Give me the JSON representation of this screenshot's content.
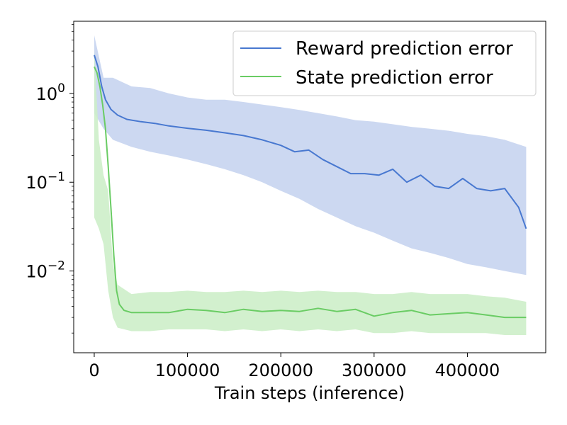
{
  "chart_data": {
    "type": "line",
    "title": "",
    "xlabel": "Train steps (inference)",
    "ylabel": "",
    "xlim": [
      -22000,
      484000
    ],
    "ylim": [
      0.0012,
      6.5
    ],
    "yscale": "log",
    "grid": false,
    "legend_position": "top-right",
    "x_ticks": [
      {
        "value": 0,
        "label": "0"
      },
      {
        "value": 100000,
        "label": "100000"
      },
      {
        "value": 200000,
        "label": "200000"
      },
      {
        "value": 300000,
        "label": "300000"
      },
      {
        "value": 400000,
        "label": "400000"
      }
    ],
    "y_ticks": [
      {
        "value": 1,
        "base": "10",
        "exp": "0"
      },
      {
        "value": 0.1,
        "base": "10",
        "exp": "−1"
      },
      {
        "value": 0.01,
        "base": "10",
        "exp": "−2"
      }
    ],
    "series": [
      {
        "name": "Reward prediction error",
        "color": "#4878d0",
        "band_color": "#c6d4f0",
        "smoothed": [
          [
            0,
            2.7
          ],
          [
            4000,
            2.0
          ],
          [
            8000,
            1.2
          ],
          [
            12000,
            0.85
          ],
          [
            18000,
            0.66
          ],
          [
            25000,
            0.57
          ],
          [
            35000,
            0.51
          ],
          [
            50000,
            0.48
          ],
          [
            65000,
            0.46
          ],
          [
            80000,
            0.43
          ],
          [
            100000,
            0.405
          ],
          [
            120000,
            0.385
          ],
          [
            140000,
            0.36
          ],
          [
            160000,
            0.335
          ],
          [
            180000,
            0.3
          ],
          [
            200000,
            0.26
          ],
          [
            215000,
            0.22
          ],
          [
            230000,
            0.23
          ],
          [
            245000,
            0.18
          ],
          [
            260000,
            0.15
          ],
          [
            275000,
            0.125
          ],
          [
            290000,
            0.125
          ],
          [
            305000,
            0.12
          ],
          [
            320000,
            0.14
          ],
          [
            335000,
            0.1
          ],
          [
            350000,
            0.12
          ],
          [
            365000,
            0.09
          ],
          [
            380000,
            0.085
          ],
          [
            395000,
            0.11
          ],
          [
            410000,
            0.085
          ],
          [
            425000,
            0.08
          ],
          [
            440000,
            0.085
          ],
          [
            455000,
            0.052
          ],
          [
            463000,
            0.03
          ]
        ],
        "raw_upper": [
          [
            0,
            4.5
          ],
          [
            10000,
            1.5
          ],
          [
            20000,
            1.5
          ],
          [
            40000,
            1.2
          ],
          [
            60000,
            1.15
          ],
          [
            80000,
            1.0
          ],
          [
            100000,
            0.9
          ],
          [
            120000,
            0.85
          ],
          [
            140000,
            0.85
          ],
          [
            160000,
            0.8
          ],
          [
            180000,
            0.75
          ],
          [
            200000,
            0.7
          ],
          [
            220000,
            0.65
          ],
          [
            240000,
            0.6
          ],
          [
            260000,
            0.55
          ],
          [
            280000,
            0.5
          ],
          [
            300000,
            0.48
          ],
          [
            320000,
            0.45
          ],
          [
            340000,
            0.42
          ],
          [
            360000,
            0.4
          ],
          [
            380000,
            0.38
          ],
          [
            400000,
            0.35
          ],
          [
            420000,
            0.33
          ],
          [
            440000,
            0.3
          ],
          [
            463000,
            0.25
          ]
        ],
        "raw_lower": [
          [
            0,
            0.6
          ],
          [
            10000,
            0.4
          ],
          [
            20000,
            0.3
          ],
          [
            40000,
            0.25
          ],
          [
            60000,
            0.22
          ],
          [
            80000,
            0.2
          ],
          [
            100000,
            0.18
          ],
          [
            120000,
            0.16
          ],
          [
            140000,
            0.14
          ],
          [
            160000,
            0.12
          ],
          [
            180000,
            0.1
          ],
          [
            200000,
            0.08
          ],
          [
            220000,
            0.065
          ],
          [
            240000,
            0.05
          ],
          [
            260000,
            0.04
          ],
          [
            280000,
            0.032
          ],
          [
            300000,
            0.027
          ],
          [
            320000,
            0.022
          ],
          [
            340000,
            0.018
          ],
          [
            360000,
            0.016
          ],
          [
            380000,
            0.014
          ],
          [
            400000,
            0.012
          ],
          [
            420000,
            0.011
          ],
          [
            440000,
            0.01
          ],
          [
            463000,
            0.009
          ]
        ]
      },
      {
        "name": "State prediction error",
        "color": "#6acc64",
        "band_color": "#cdeec9",
        "smoothed": [
          [
            0,
            2.0
          ],
          [
            3000,
            1.7
          ],
          [
            6000,
            1.2
          ],
          [
            9000,
            0.75
          ],
          [
            12000,
            0.4
          ],
          [
            15000,
            0.15
          ],
          [
            18000,
            0.05
          ],
          [
            21000,
            0.015
          ],
          [
            24000,
            0.006
          ],
          [
            27000,
            0.0042
          ],
          [
            32000,
            0.0036
          ],
          [
            40000,
            0.0034
          ],
          [
            60000,
            0.0034
          ],
          [
            80000,
            0.0034
          ],
          [
            100000,
            0.0037
          ],
          [
            120000,
            0.0036
          ],
          [
            140000,
            0.0034
          ],
          [
            160000,
            0.0037
          ],
          [
            180000,
            0.0035
          ],
          [
            200000,
            0.0036
          ],
          [
            220000,
            0.0035
          ],
          [
            240000,
            0.0038
          ],
          [
            260000,
            0.0035
          ],
          [
            280000,
            0.0037
          ],
          [
            300000,
            0.0031
          ],
          [
            320000,
            0.0034
          ],
          [
            340000,
            0.0036
          ],
          [
            360000,
            0.0032
          ],
          [
            380000,
            0.0033
          ],
          [
            400000,
            0.0034
          ],
          [
            420000,
            0.0032
          ],
          [
            440000,
            0.003
          ],
          [
            463000,
            0.003
          ]
        ],
        "raw_upper": [
          [
            0,
            3.0
          ],
          [
            5000,
            0.3
          ],
          [
            10000,
            0.12
          ],
          [
            15000,
            0.08
          ],
          [
            20000,
            0.012
          ],
          [
            25000,
            0.007
          ],
          [
            40000,
            0.0055
          ],
          [
            60000,
            0.0058
          ],
          [
            80000,
            0.0058
          ],
          [
            100000,
            0.006
          ],
          [
            120000,
            0.0058
          ],
          [
            140000,
            0.0058
          ],
          [
            160000,
            0.006
          ],
          [
            180000,
            0.0058
          ],
          [
            200000,
            0.006
          ],
          [
            220000,
            0.0058
          ],
          [
            240000,
            0.006
          ],
          [
            260000,
            0.0058
          ],
          [
            280000,
            0.0058
          ],
          [
            300000,
            0.0055
          ],
          [
            320000,
            0.0055
          ],
          [
            340000,
            0.0058
          ],
          [
            360000,
            0.0055
          ],
          [
            380000,
            0.0055
          ],
          [
            400000,
            0.0055
          ],
          [
            420000,
            0.0052
          ],
          [
            440000,
            0.005
          ],
          [
            463000,
            0.0045
          ]
        ],
        "raw_lower": [
          [
            0,
            0.04
          ],
          [
            5000,
            0.03
          ],
          [
            10000,
            0.02
          ],
          [
            15000,
            0.006
          ],
          [
            20000,
            0.003
          ],
          [
            25000,
            0.0023
          ],
          [
            40000,
            0.0021
          ],
          [
            60000,
            0.0021
          ],
          [
            80000,
            0.0022
          ],
          [
            100000,
            0.0022
          ],
          [
            120000,
            0.0022
          ],
          [
            140000,
            0.0021
          ],
          [
            160000,
            0.0022
          ],
          [
            180000,
            0.0021
          ],
          [
            200000,
            0.0022
          ],
          [
            220000,
            0.0021
          ],
          [
            240000,
            0.0022
          ],
          [
            260000,
            0.0021
          ],
          [
            280000,
            0.0022
          ],
          [
            300000,
            0.002
          ],
          [
            320000,
            0.002
          ],
          [
            340000,
            0.0021
          ],
          [
            360000,
            0.002
          ],
          [
            380000,
            0.002
          ],
          [
            400000,
            0.002
          ],
          [
            420000,
            0.002
          ],
          [
            440000,
            0.0019
          ],
          [
            463000,
            0.0019
          ]
        ]
      }
    ]
  }
}
